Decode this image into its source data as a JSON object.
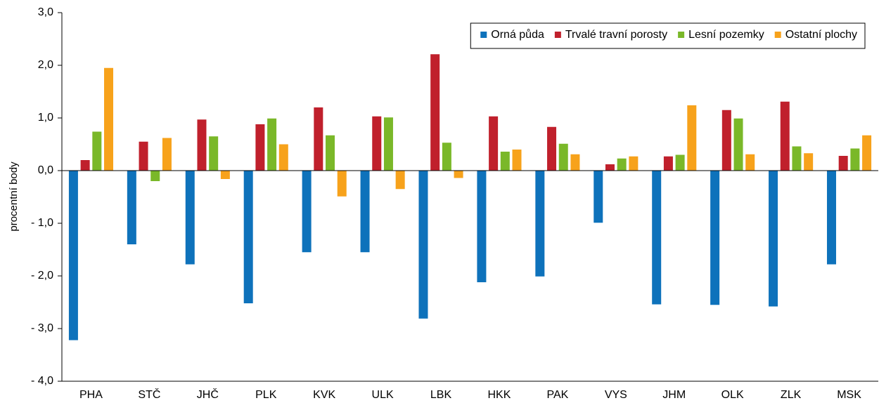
{
  "chart_data": {
    "type": "bar",
    "y_label": "procentní body",
    "categories": [
      "PHA",
      "STČ",
      "JHČ",
      "PLK",
      "KVK",
      "ULK",
      "LBK",
      "HKK",
      "PAK",
      "VYS",
      "JHM",
      "OLK",
      "ZLK",
      "MSK"
    ],
    "series": [
      {
        "name": "Orná půda",
        "color": "#0e72bb",
        "values": [
          -3.22,
          -1.4,
          -1.78,
          -2.52,
          -1.55,
          -1.55,
          -2.81,
          -2.12,
          -2.01,
          -0.99,
          -2.54,
          -2.55,
          -2.58,
          -1.78
        ]
      },
      {
        "name": "Trvalé travní porosty",
        "color": "#c0202c",
        "values": [
          0.2,
          0.55,
          0.97,
          0.88,
          1.2,
          1.03,
          2.21,
          1.03,
          0.83,
          0.12,
          0.27,
          1.15,
          1.31,
          0.28
        ]
      },
      {
        "name": "Lesní pozemky",
        "color": "#7ab829",
        "values": [
          0.74,
          -0.2,
          0.65,
          0.99,
          0.67,
          1.01,
          0.53,
          0.36,
          0.51,
          0.23,
          0.3,
          0.99,
          0.46,
          0.42
        ]
      },
      {
        "name": "Ostatní plochy",
        "color": "#f7a21b",
        "values": [
          1.95,
          0.62,
          -0.16,
          0.5,
          -0.49,
          -0.35,
          -0.14,
          0.4,
          0.31,
          0.27,
          1.24,
          0.31,
          0.33,
          0.67
        ]
      }
    ],
    "ylim": [
      -4,
      3
    ],
    "yticks": [
      {
        "value": 3,
        "label": "3,0"
      },
      {
        "value": 2,
        "label": "2,0"
      },
      {
        "value": 1,
        "label": "1,0"
      },
      {
        "value": 0,
        "label": "0,0"
      },
      {
        "value": -1,
        "label": "- 1,0"
      },
      {
        "value": -2,
        "label": "- 2,0"
      },
      {
        "value": -3,
        "label": "- 3,0"
      },
      {
        "value": -4,
        "label": "- 4,0"
      }
    ],
    "legend": "top-right"
  }
}
